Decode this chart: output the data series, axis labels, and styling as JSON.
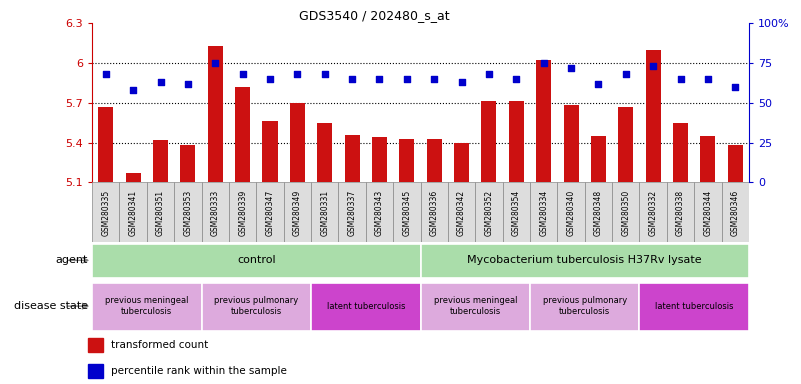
{
  "title": "GDS3540 / 202480_s_at",
  "samples": [
    "GSM280335",
    "GSM280341",
    "GSM280351",
    "GSM280353",
    "GSM280333",
    "GSM280339",
    "GSM280347",
    "GSM280349",
    "GSM280331",
    "GSM280337",
    "GSM280343",
    "GSM280345",
    "GSM280336",
    "GSM280342",
    "GSM280352",
    "GSM280354",
    "GSM280334",
    "GSM280340",
    "GSM280348",
    "GSM280350",
    "GSM280332",
    "GSM280338",
    "GSM280344",
    "GSM280346"
  ],
  "bar_values": [
    5.67,
    5.17,
    5.42,
    5.38,
    6.13,
    5.82,
    5.56,
    5.7,
    5.55,
    5.46,
    5.44,
    5.43,
    5.43,
    5.4,
    5.71,
    5.71,
    6.02,
    5.68,
    5.45,
    5.67,
    6.1,
    5.55,
    5.45,
    5.38
  ],
  "percentile_values": [
    68,
    58,
    63,
    62,
    75,
    68,
    65,
    68,
    68,
    65,
    65,
    65,
    65,
    63,
    68,
    65,
    75,
    72,
    62,
    68,
    73,
    65,
    65,
    60
  ],
  "bar_baseline": 5.1,
  "ylim_left": [
    5.1,
    6.3
  ],
  "ylim_right": [
    0,
    100
  ],
  "yticks_left": [
    5.1,
    5.4,
    5.7,
    6.0,
    6.3
  ],
  "yticks_left_labels": [
    "5.1",
    "5.4",
    "5.7",
    "6",
    "6.3"
  ],
  "yticks_right": [
    0,
    25,
    50,
    75,
    100
  ],
  "yticks_right_labels": [
    "0",
    "25",
    "50",
    "75",
    "100%"
  ],
  "bar_color": "#cc1111",
  "dot_color": "#0000cc",
  "agent_groups": [
    {
      "label": "control",
      "start": 0,
      "end": 11,
      "color": "#aaddaa"
    },
    {
      "label": "Mycobacterium tuberculosis H37Rv lysate",
      "start": 12,
      "end": 23,
      "color": "#aaddaa"
    }
  ],
  "disease_groups": [
    {
      "label": "previous meningeal\ntuberculosis",
      "start": 0,
      "end": 3,
      "color": "#ddaadd"
    },
    {
      "label": "previous pulmonary\ntuberculosis",
      "start": 4,
      "end": 7,
      "color": "#ddaadd"
    },
    {
      "label": "latent tuberculosis",
      "start": 8,
      "end": 11,
      "color": "#cc44cc"
    },
    {
      "label": "previous meningeal\ntuberculosis",
      "start": 12,
      "end": 15,
      "color": "#ddaadd"
    },
    {
      "label": "previous pulmonary\ntuberculosis",
      "start": 16,
      "end": 19,
      "color": "#ddaadd"
    },
    {
      "label": "latent tuberculosis",
      "start": 20,
      "end": 23,
      "color": "#cc44cc"
    }
  ],
  "legend_items": [
    {
      "label": "transformed count",
      "color": "#cc1111"
    },
    {
      "label": "percentile rank within the sample",
      "color": "#0000cc"
    }
  ],
  "grid_color": "black",
  "grid_values": [
    5.4,
    5.7,
    6.0
  ],
  "background_color": "#ffffff",
  "left_axis_color": "#cc0000",
  "right_axis_color": "#0000cc",
  "tick_bg_color": "#dddddd",
  "tick_border_color": "#888888"
}
